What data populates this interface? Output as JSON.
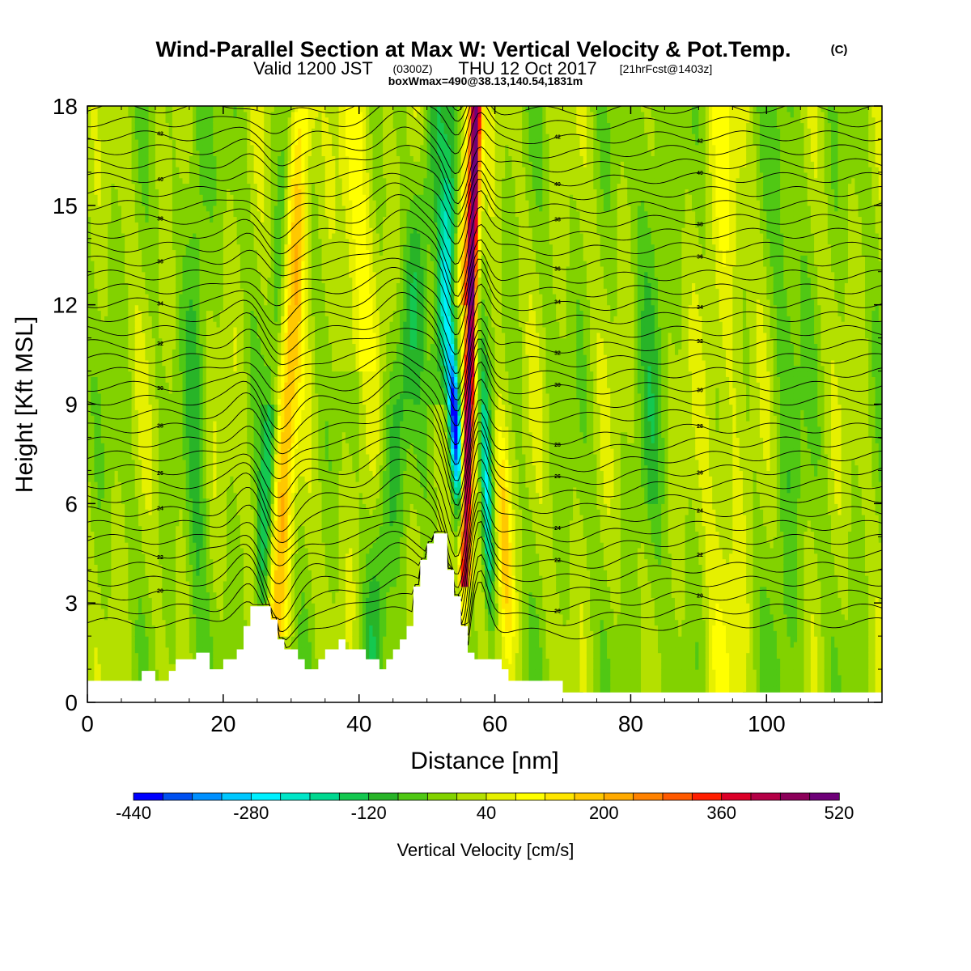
{
  "title": {
    "main": "Wind-Parallel Section at Max W: Vertical Velocity & Pot.Temp.",
    "main_suffix": "(C)",
    "valid_prefix": "Valid 1200 JST",
    "valid_z": "(0300Z)",
    "valid_date": "THU 12 Oct 2017",
    "forecast": "[21hrFcst@1403z]",
    "boxmax": "boxWmax=490@38.13,140.54,1831m"
  },
  "chart_data": {
    "type": "heatmap",
    "xlabel": "Distance [nm]",
    "ylabel": "Height [Kft MSL]",
    "xlim": [
      0,
      117
    ],
    "ylim": [
      0,
      18
    ],
    "xticks": [
      0,
      20,
      40,
      60,
      80,
      100
    ],
    "yticks": [
      0,
      3,
      6,
      9,
      12,
      15,
      18
    ],
    "colorbar": {
      "label": "Vertical Velocity [cm/s]",
      "tick_values": [
        -440,
        -280,
        -120,
        40,
        200,
        360,
        520
      ],
      "tick_labels": [
        "-440",
        "-280",
        "-120",
        "40",
        "200",
        "360",
        "520"
      ],
      "colors": [
        "#0000ff",
        "#0050f0",
        "#0090ff",
        "#00c8ff",
        "#00f0ff",
        "#00e6c8",
        "#00d890",
        "#14c850",
        "#28b428",
        "#50c814",
        "#82d200",
        "#b4e000",
        "#e6f000",
        "#ffff00",
        "#ffe600",
        "#ffc800",
        "#ffaa00",
        "#ff8200",
        "#ff5a00",
        "#ff1e00",
        "#dc0028",
        "#b40046",
        "#8c005a",
        "#6e0078"
      ]
    },
    "max_w_cm_s": 490,
    "max_w_location_nm": 56,
    "terrain_kft": [
      [
        0,
        0.65
      ],
      [
        8,
        0.65
      ],
      [
        8,
        0.95
      ],
      [
        10,
        0.95
      ],
      [
        10,
        0.65
      ],
      [
        11,
        0.65
      ],
      [
        11,
        0.65
      ],
      [
        12,
        0.65
      ],
      [
        12,
        0.95
      ],
      [
        13,
        0.95
      ],
      [
        13,
        1.3
      ],
      [
        16,
        1.3
      ],
      [
        16,
        1.5
      ],
      [
        18,
        1.5
      ],
      [
        18,
        1.0
      ],
      [
        20,
        1.0
      ],
      [
        20,
        1.3
      ],
      [
        22,
        1.3
      ],
      [
        22,
        1.6
      ],
      [
        23,
        1.6
      ],
      [
        23,
        2.3
      ],
      [
        24,
        2.3
      ],
      [
        24,
        2.9
      ],
      [
        27,
        2.9
      ],
      [
        27,
        2.5
      ],
      [
        28,
        2.5
      ],
      [
        28,
        1.9
      ],
      [
        29,
        1.9
      ],
      [
        29,
        1.6
      ],
      [
        31,
        1.6
      ],
      [
        31,
        1.3
      ],
      [
        32,
        1.3
      ],
      [
        32,
        1.0
      ],
      [
        34,
        1.0
      ],
      [
        34,
        1.3
      ],
      [
        35,
        1.3
      ],
      [
        35,
        1.6
      ],
      [
        37,
        1.6
      ],
      [
        37,
        1.9
      ],
      [
        38,
        1.9
      ],
      [
        38,
        1.6
      ],
      [
        41,
        1.6
      ],
      [
        41,
        1.3
      ],
      [
        43,
        1.3
      ],
      [
        43,
        1.0
      ],
      [
        44,
        1.0
      ],
      [
        44,
        1.3
      ],
      [
        45,
        1.3
      ],
      [
        45,
        1.6
      ],
      [
        46,
        1.6
      ],
      [
        46,
        1.9
      ],
      [
        47,
        1.9
      ],
      [
        47,
        2.3
      ],
      [
        48,
        2.3
      ],
      [
        48,
        3.5
      ],
      [
        49,
        3.5
      ],
      [
        49,
        4.3
      ],
      [
        50,
        4.3
      ],
      [
        50,
        4.8
      ],
      [
        51,
        4.8
      ],
      [
        51,
        5.1
      ],
      [
        53,
        5.1
      ],
      [
        53,
        4.0
      ],
      [
        54,
        4.0
      ],
      [
        54,
        3.2
      ],
      [
        55,
        3.2
      ],
      [
        55,
        2.3
      ],
      [
        56,
        2.3
      ],
      [
        56,
        1.5
      ],
      [
        57,
        1.5
      ],
      [
        57,
        1.3
      ],
      [
        61,
        1.3
      ],
      [
        61,
        1.0
      ],
      [
        62,
        1.0
      ],
      [
        62,
        0.65
      ],
      [
        70,
        0.65
      ],
      [
        70,
        0.3
      ],
      [
        117,
        0.3
      ]
    ]
  }
}
